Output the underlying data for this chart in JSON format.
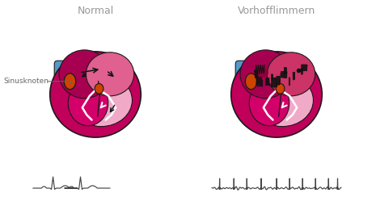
{
  "title_normal": "Normal",
  "title_vhf": "Vorhofflimmern",
  "label_sinus": "Sinusknoten",
  "bg_color": "#ffffff",
  "title_color": "#999999",
  "label_color": "#666666",
  "heart_outer_dark": "#c0005a",
  "heart_magenta": "#d4006a",
  "heart_pink_light": "#f0aac8",
  "heart_atria_pink": "#e06090",
  "heart_dark_chamber": "#a80050",
  "aorta_blue": "#5599cc",
  "outline_color": "#1a1a1a",
  "ecg_color": "#444444",
  "sinus_node_color": "#cc4400",
  "arrow_dark": "#111111",
  "white_color": "#ffffff",
  "fibrillation_squiggle": "#111111",
  "vhf_dark_patch": "#880033"
}
